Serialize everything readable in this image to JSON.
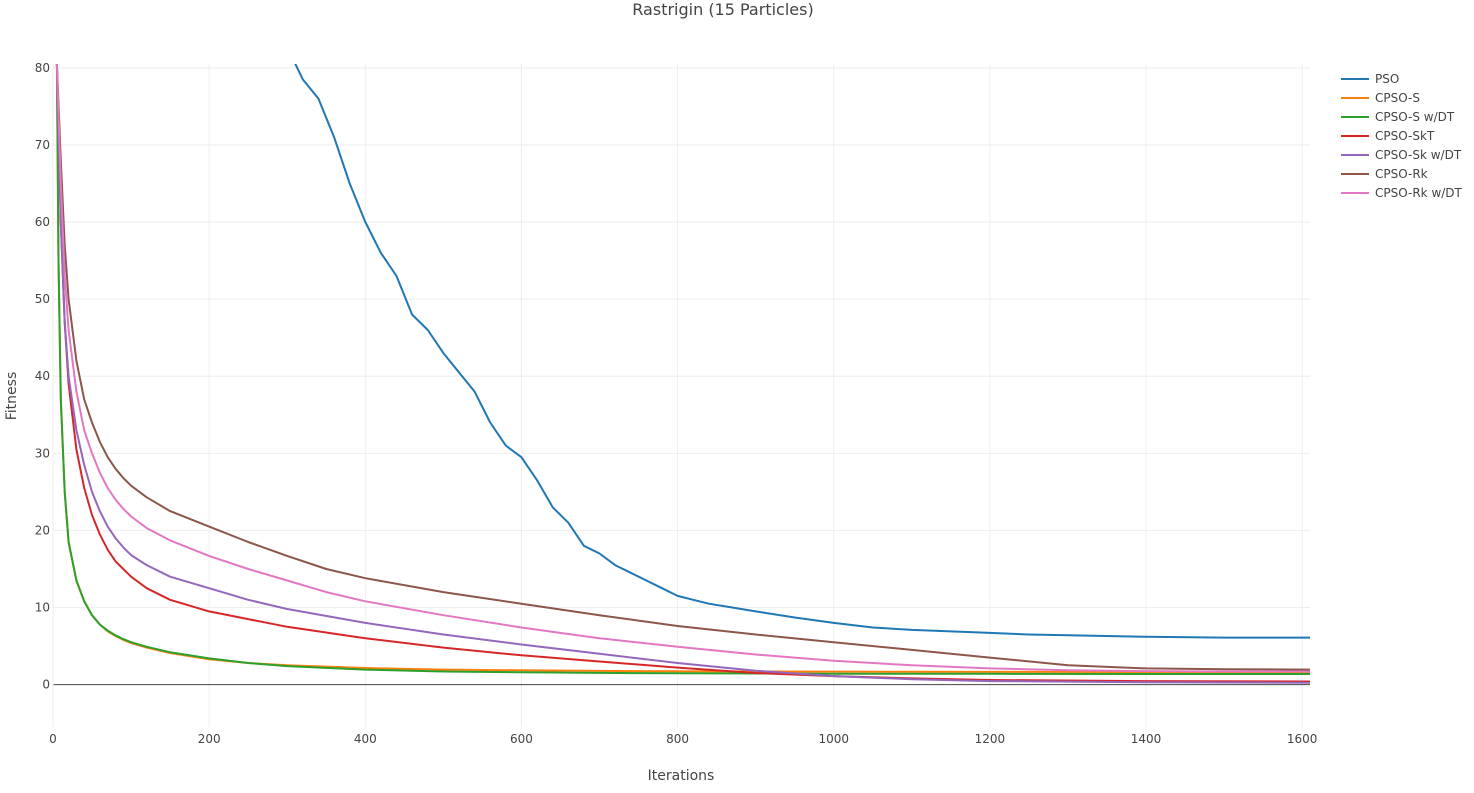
{
  "chart_data": {
    "type": "line",
    "title": "Rastrigin (15 Particles)",
    "xlabel": "Iterations",
    "ylabel": "Fitness",
    "xlim": [
      0,
      1610
    ],
    "ylim": [
      -5.5,
      80.5
    ],
    "x_ticks": [
      0,
      200,
      400,
      600,
      800,
      1000,
      1200,
      1400,
      1600
    ],
    "y_ticks": [
      0,
      10,
      20,
      30,
      40,
      50,
      60,
      70,
      80
    ],
    "grid": true,
    "legend_position": "top-right",
    "series": [
      {
        "name": "PSO",
        "color": "#1f77b4",
        "points": [
          [
            308,
            81
          ],
          [
            320,
            78.5
          ],
          [
            340,
            76
          ],
          [
            360,
            71
          ],
          [
            380,
            65
          ],
          [
            400,
            60
          ],
          [
            420,
            56
          ],
          [
            440,
            53
          ],
          [
            460,
            48
          ],
          [
            480,
            46
          ],
          [
            500,
            43
          ],
          [
            520,
            40.5
          ],
          [
            540,
            38
          ],
          [
            560,
            34
          ],
          [
            580,
            31
          ],
          [
            600,
            29.5
          ],
          [
            620,
            26.5
          ],
          [
            640,
            23
          ],
          [
            660,
            21
          ],
          [
            680,
            18
          ],
          [
            700,
            17
          ],
          [
            720,
            15.5
          ],
          [
            740,
            14.5
          ],
          [
            760,
            13.5
          ],
          [
            780,
            12.5
          ],
          [
            800,
            11.5
          ],
          [
            820,
            11
          ],
          [
            840,
            10.5
          ],
          [
            870,
            10
          ],
          [
            900,
            9.5
          ],
          [
            950,
            8.7
          ],
          [
            1000,
            8
          ],
          [
            1050,
            7.4
          ],
          [
            1100,
            7.1
          ],
          [
            1150,
            6.9
          ],
          [
            1200,
            6.7
          ],
          [
            1250,
            6.5
          ],
          [
            1300,
            6.4
          ],
          [
            1400,
            6.2
          ],
          [
            1500,
            6.1
          ],
          [
            1610,
            6.1
          ]
        ]
      },
      {
        "name": "CPSO-S",
        "color": "#ff7f0e",
        "points": [
          [
            5,
            80.5
          ],
          [
            7,
            55
          ],
          [
            10,
            37
          ],
          [
            15,
            25
          ],
          [
            20,
            18.5
          ],
          [
            30,
            13.5
          ],
          [
            40,
            10.8
          ],
          [
            50,
            9
          ],
          [
            60,
            7.8
          ],
          [
            70,
            6.9
          ],
          [
            80,
            6.3
          ],
          [
            90,
            5.8
          ],
          [
            100,
            5.4
          ],
          [
            120,
            4.8
          ],
          [
            150,
            4.1
          ],
          [
            200,
            3.3
          ],
          [
            250,
            2.8
          ],
          [
            300,
            2.5
          ],
          [
            400,
            2.15
          ],
          [
            500,
            1.95
          ],
          [
            600,
            1.85
          ],
          [
            700,
            1.78
          ],
          [
            800,
            1.72
          ],
          [
            1000,
            1.68
          ],
          [
            1200,
            1.65
          ],
          [
            1400,
            1.63
          ],
          [
            1610,
            1.62
          ]
        ]
      },
      {
        "name": "CPSO-S w/DT",
        "color": "#2ca02c",
        "points": [
          [
            5,
            80.5
          ],
          [
            7,
            55
          ],
          [
            10,
            37
          ],
          [
            15,
            25
          ],
          [
            20,
            18.5
          ],
          [
            30,
            13.5
          ],
          [
            40,
            10.8
          ],
          [
            50,
            9
          ],
          [
            60,
            7.8
          ],
          [
            70,
            7
          ],
          [
            80,
            6.4
          ],
          [
            90,
            5.9
          ],
          [
            100,
            5.5
          ],
          [
            120,
            4.9
          ],
          [
            150,
            4.2
          ],
          [
            200,
            3.4
          ],
          [
            250,
            2.8
          ],
          [
            300,
            2.4
          ],
          [
            400,
            1.95
          ],
          [
            500,
            1.7
          ],
          [
            600,
            1.6
          ],
          [
            700,
            1.52
          ],
          [
            800,
            1.47
          ],
          [
            1000,
            1.42
          ],
          [
            1200,
            1.4
          ],
          [
            1400,
            1.38
          ],
          [
            1610,
            1.37
          ]
        ]
      },
      {
        "name": "CPSO-SkT",
        "color": "#d62728",
        "points": [
          [
            5,
            80.5
          ],
          [
            10,
            60
          ],
          [
            15,
            47
          ],
          [
            20,
            39
          ],
          [
            30,
            30.5
          ],
          [
            40,
            25.5
          ],
          [
            50,
            22
          ],
          [
            60,
            19.5
          ],
          [
            70,
            17.5
          ],
          [
            80,
            16
          ],
          [
            90,
            15
          ],
          [
            100,
            14
          ],
          [
            120,
            12.5
          ],
          [
            150,
            11
          ],
          [
            200,
            9.5
          ],
          [
            250,
            8.5
          ],
          [
            300,
            7.5
          ],
          [
            400,
            6
          ],
          [
            500,
            4.8
          ],
          [
            600,
            3.8
          ],
          [
            700,
            3
          ],
          [
            800,
            2.2
          ],
          [
            900,
            1.5
          ],
          [
            1000,
            1.1
          ],
          [
            1100,
            0.8
          ],
          [
            1200,
            0.6
          ],
          [
            1400,
            0.45
          ],
          [
            1610,
            0.4
          ]
        ]
      },
      {
        "name": "CPSO-Sk w/DT",
        "color": "#9467bd",
        "points": [
          [
            5,
            80.5
          ],
          [
            10,
            60
          ],
          [
            15,
            47
          ],
          [
            20,
            40
          ],
          [
            30,
            33
          ],
          [
            40,
            28.5
          ],
          [
            50,
            25
          ],
          [
            60,
            22.5
          ],
          [
            70,
            20.5
          ],
          [
            80,
            19
          ],
          [
            90,
            17.8
          ],
          [
            100,
            16.8
          ],
          [
            120,
            15.5
          ],
          [
            150,
            14
          ],
          [
            200,
            12.5
          ],
          [
            250,
            11
          ],
          [
            300,
            9.8
          ],
          [
            400,
            8
          ],
          [
            500,
            6.5
          ],
          [
            600,
            5.2
          ],
          [
            700,
            4
          ],
          [
            800,
            2.8
          ],
          [
            900,
            1.8
          ],
          [
            1000,
            1.1
          ],
          [
            1100,
            0.7
          ],
          [
            1200,
            0.45
          ],
          [
            1400,
            0.3
          ],
          [
            1610,
            0.25
          ]
        ]
      },
      {
        "name": "CPSO-Rk",
        "color": "#8c564b",
        "points": [
          [
            5,
            80.5
          ],
          [
            10,
            68
          ],
          [
            15,
            57
          ],
          [
            20,
            50
          ],
          [
            30,
            42
          ],
          [
            40,
            37
          ],
          [
            50,
            34
          ],
          [
            60,
            31.5
          ],
          [
            70,
            29.5
          ],
          [
            80,
            28
          ],
          [
            90,
            26.8
          ],
          [
            100,
            25.8
          ],
          [
            120,
            24.3
          ],
          [
            150,
            22.5
          ],
          [
            200,
            20.5
          ],
          [
            250,
            18.5
          ],
          [
            300,
            16.7
          ],
          [
            350,
            15
          ],
          [
            400,
            13.8
          ],
          [
            500,
            12
          ],
          [
            600,
            10.5
          ],
          [
            700,
            9
          ],
          [
            800,
            7.6
          ],
          [
            900,
            6.5
          ],
          [
            1000,
            5.5
          ],
          [
            1100,
            4.5
          ],
          [
            1200,
            3.5
          ],
          [
            1300,
            2.5
          ],
          [
            1400,
            2.1
          ],
          [
            1500,
            2
          ],
          [
            1610,
            1.95
          ]
        ]
      },
      {
        "name": "CPSO-Rk w/DT",
        "color": "#e377c2",
        "points": [
          [
            5,
            80.5
          ],
          [
            10,
            65
          ],
          [
            15,
            53
          ],
          [
            20,
            46
          ],
          [
            30,
            38
          ],
          [
            40,
            33
          ],
          [
            50,
            30
          ],
          [
            60,
            27.5
          ],
          [
            70,
            25.5
          ],
          [
            80,
            24
          ],
          [
            90,
            22.8
          ],
          [
            100,
            21.8
          ],
          [
            120,
            20.3
          ],
          [
            150,
            18.7
          ],
          [
            200,
            16.7
          ],
          [
            250,
            15
          ],
          [
            300,
            13.5
          ],
          [
            350,
            12
          ],
          [
            400,
            10.8
          ],
          [
            500,
            9
          ],
          [
            600,
            7.4
          ],
          [
            700,
            6
          ],
          [
            800,
            4.9
          ],
          [
            900,
            3.9
          ],
          [
            1000,
            3.1
          ],
          [
            1100,
            2.5
          ],
          [
            1200,
            2.1
          ],
          [
            1300,
            1.85
          ],
          [
            1400,
            1.75
          ],
          [
            1500,
            1.7
          ],
          [
            1610,
            1.7
          ]
        ]
      }
    ]
  }
}
